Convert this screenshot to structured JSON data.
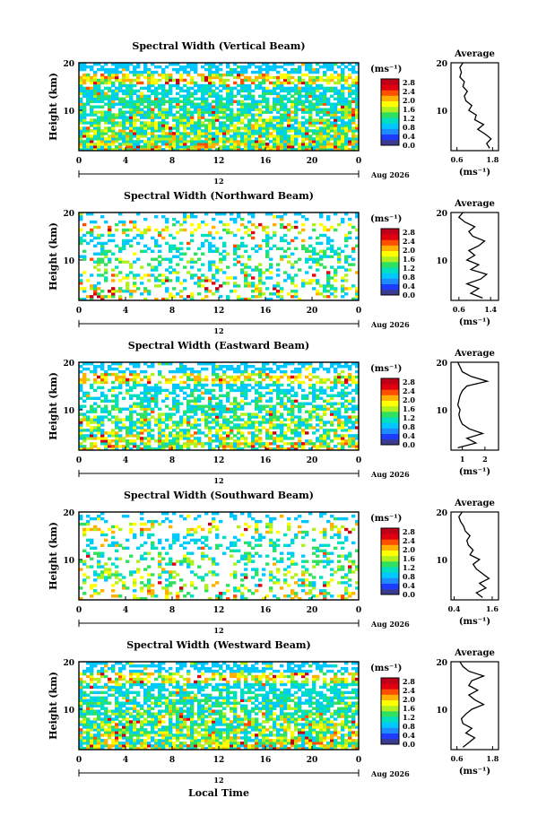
{
  "page": {
    "xlabel": "Local Time"
  },
  "colorbar": {
    "unit": "(ms⁻¹)",
    "ticks": [
      "2.8",
      "2.4",
      "2.0",
      "1.6",
      "1.2",
      "0.8",
      "0.4",
      "0.0"
    ],
    "colors": [
      "#3a3a8f",
      "#1e3cff",
      "#1e8cff",
      "#00c8ff",
      "#00e0c0",
      "#30e060",
      "#b0f020",
      "#ffff00",
      "#ffb000",
      "#ff5000",
      "#e00010",
      "#c00018"
    ]
  },
  "axes": {
    "x_ticks": [
      "0",
      "4",
      "8",
      "12",
      "16",
      "20",
      "0"
    ],
    "y_ticks": [
      "20",
      "10"
    ],
    "ylabel": "Height (km)",
    "date_mid": "12",
    "date_right": "Aug 2026"
  },
  "chart_data": [
    {
      "type": "heatmap",
      "title": "Spectral Width (Vertical Beam)",
      "xlabel": "",
      "ylabel": "Height (km)",
      "xlim": [
        0,
        24
      ],
      "ylim": [
        1.5,
        20
      ],
      "zlim": [
        0,
        3.0
      ],
      "coverage": 0.92,
      "seed": 11,
      "profile": {
        "title": "Average",
        "xlabel": "(ms⁻¹)",
        "xticks": [
          "0.6",
          "1.8"
        ],
        "xlim": [
          0.4,
          2.0
        ],
        "heights": [
          2,
          3,
          4,
          5,
          6,
          7,
          8,
          9,
          10,
          11,
          12,
          13,
          14,
          15,
          16,
          17,
          18,
          19,
          20
        ],
        "values": [
          1.7,
          1.6,
          1.75,
          1.55,
          1.3,
          1.5,
          1.2,
          1.25,
          1.0,
          1.1,
          0.9,
          0.85,
          0.95,
          0.8,
          0.85,
          0.7,
          0.75,
          0.7,
          0.8
        ]
      }
    },
    {
      "type": "heatmap",
      "title": "Spectral Width (Northward Beam)",
      "xlabel": "",
      "ylabel": "Height (km)",
      "xlim": [
        0,
        24
      ],
      "ylim": [
        1.5,
        20
      ],
      "zlim": [
        0,
        3.0
      ],
      "coverage": 0.35,
      "seed": 23,
      "profile": {
        "title": "Average",
        "xlabel": "(ms⁻¹)",
        "xticks": [
          "0.6",
          "1.4"
        ],
        "xlim": [
          0.4,
          1.6
        ],
        "heights": [
          2,
          3,
          4,
          5,
          6,
          7,
          8,
          9,
          10,
          11,
          12,
          13,
          14,
          15,
          16,
          17,
          18,
          19,
          20
        ],
        "values": [
          1.2,
          0.9,
          1.1,
          0.8,
          1.15,
          1.3,
          0.9,
          1.1,
          0.8,
          1.0,
          0.85,
          1.1,
          1.25,
          0.95,
          0.85,
          1.0,
          0.75,
          0.6,
          0.7
        ]
      }
    },
    {
      "type": "heatmap",
      "title": "Spectral Width (Eastward Beam)",
      "xlabel": "",
      "ylabel": "Height (km)",
      "xlim": [
        0,
        24
      ],
      "ylim": [
        1.5,
        20
      ],
      "zlim": [
        0,
        3.0
      ],
      "coverage": 0.7,
      "seed": 37,
      "profile": {
        "title": "Average",
        "xlabel": "(ms⁻¹)",
        "xticks": [
          "1",
          "2"
        ],
        "xlim": [
          0.5,
          2.6
        ],
        "heights": [
          2,
          3,
          4,
          5,
          6,
          7,
          8,
          9,
          10,
          11,
          12,
          13,
          14,
          15,
          16,
          17,
          18,
          19,
          20
        ],
        "values": [
          0.8,
          1.6,
          1.2,
          1.9,
          1.3,
          1.0,
          0.9,
          0.85,
          0.9,
          0.8,
          0.85,
          0.9,
          1.0,
          1.2,
          2.1,
          1.4,
          1.0,
          0.9,
          0.8
        ]
      }
    },
    {
      "type": "heatmap",
      "title": "Spectral Width (Southward Beam)",
      "xlabel": "",
      "ylabel": "Height (km)",
      "xlim": [
        0,
        24
      ],
      "ylim": [
        1.5,
        20
      ],
      "zlim": [
        0,
        3.0
      ],
      "coverage": 0.35,
      "seed": 51,
      "profile": {
        "title": "Average",
        "xlabel": "(ms⁻¹)",
        "xticks": [
          "0.4",
          "1.6"
        ],
        "xlim": [
          0.3,
          1.8
        ],
        "heights": [
          2,
          3,
          4,
          5,
          6,
          7,
          8,
          9,
          10,
          11,
          12,
          13,
          14,
          15,
          16,
          17,
          18,
          19,
          20
        ],
        "values": [
          1.3,
          1.1,
          1.4,
          1.2,
          1.5,
          1.3,
          1.1,
          1.0,
          1.2,
          0.9,
          1.0,
          0.85,
          0.8,
          0.9,
          0.75,
          0.7,
          0.6,
          0.55,
          0.65
        ]
      }
    },
    {
      "type": "heatmap",
      "title": "Spectral Width (Westward Beam)",
      "xlabel": "Local Time",
      "ylabel": "Height (km)",
      "xlim": [
        0,
        24
      ],
      "ylim": [
        1.5,
        20
      ],
      "zlim": [
        0,
        3.0
      ],
      "coverage": 0.85,
      "seed": 67,
      "profile": {
        "title": "Average",
        "xlabel": "(ms⁻¹)",
        "xticks": [
          "0.6",
          "1.8"
        ],
        "xlim": [
          0.4,
          2.0
        ],
        "heights": [
          2,
          3,
          4,
          5,
          6,
          7,
          8,
          9,
          10,
          11,
          12,
          13,
          14,
          15,
          16,
          17,
          18,
          19,
          20
        ],
        "values": [
          0.8,
          1.0,
          1.2,
          0.9,
          1.1,
          0.8,
          0.75,
          0.9,
          1.1,
          1.5,
          1.2,
          1.0,
          1.3,
          1.0,
          1.1,
          1.5,
          1.0,
          0.8,
          0.7
        ]
      }
    }
  ]
}
